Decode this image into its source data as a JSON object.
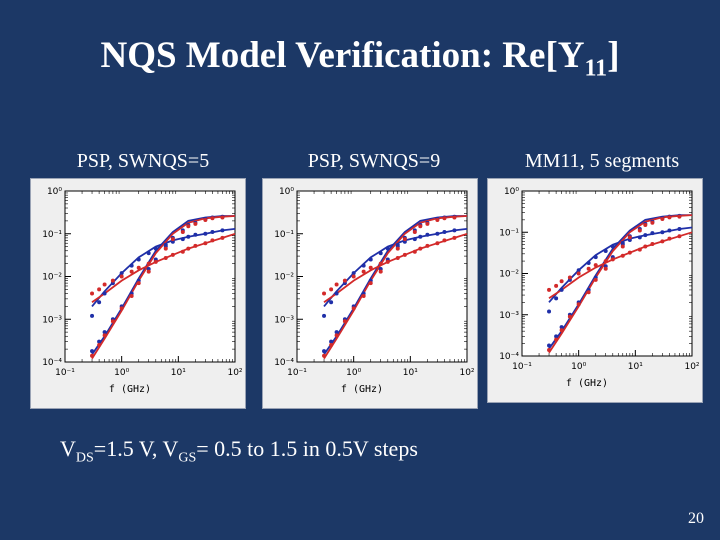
{
  "slide": {
    "title_main": "NQS Model Verification: Re[Y",
    "title_sub": "11",
    "title_end": "]",
    "caption": {
      "p1": "V",
      "s1": "DS",
      "p2": "=1.5 V, V",
      "s2": "GS",
      "p3": "= 0.5 to 1.5 in 0.5V steps"
    },
    "page_number": "20"
  },
  "colors": {
    "background": "#1c3866",
    "blue_series": "#1f2fa8",
    "red_series": "#d32a2a"
  },
  "chart_data": [
    {
      "type": "line",
      "panel_label": "PSP, SWNQS=5",
      "xlabel": "f (GHz)",
      "xscale": "log",
      "yscale": "log",
      "xlim": [
        0.1,
        100
      ],
      "ylim": [
        0.0001,
        1
      ],
      "x_ticks": [
        "10⁻¹",
        "10⁰",
        "10¹",
        "10²"
      ],
      "y_ticks": [
        "10⁰",
        "10⁻¹",
        "10⁻²",
        "10⁻³",
        "10⁻⁴"
      ],
      "series": [
        {
          "color": "blue",
          "style": "line",
          "x": [
            0.3,
            0.5,
            1,
            2,
            4,
            8,
            15,
            30,
            60,
            100
          ],
          "y": [
            0.00015,
            0.0004,
            0.0018,
            0.009,
            0.04,
            0.11,
            0.2,
            0.24,
            0.26,
            0.26
          ]
        },
        {
          "color": "blue",
          "style": "line",
          "x": [
            0.3,
            0.5,
            1,
            2,
            4,
            8,
            15,
            30,
            60,
            100
          ],
          "y": [
            0.002,
            0.0045,
            0.012,
            0.028,
            0.05,
            0.07,
            0.085,
            0.1,
            0.12,
            0.13
          ]
        },
        {
          "color": "red",
          "style": "line",
          "x": [
            0.3,
            0.5,
            1,
            2,
            4,
            8,
            15,
            30,
            60,
            100
          ],
          "y": [
            0.00012,
            0.00035,
            0.0016,
            0.008,
            0.035,
            0.1,
            0.18,
            0.23,
            0.25,
            0.26
          ]
        },
        {
          "color": "red",
          "style": "line",
          "x": [
            0.3,
            0.5,
            1,
            2,
            4,
            8,
            15,
            30,
            60,
            100
          ],
          "y": [
            0.0025,
            0.004,
            0.008,
            0.014,
            0.022,
            0.032,
            0.045,
            0.06,
            0.08,
            0.1
          ]
        },
        {
          "color": "blue",
          "style": "points",
          "x": [
            0.3,
            0.4,
            0.5,
            0.7,
            1,
            1.5,
            2,
            3,
            4,
            6,
            8,
            12,
            15,
            20,
            30,
            40,
            60
          ],
          "y": [
            0.0012,
            0.0025,
            0.004,
            0.007,
            0.012,
            0.018,
            0.025,
            0.035,
            0.045,
            0.055,
            0.065,
            0.075,
            0.085,
            0.095,
            0.1,
            0.11,
            0.12
          ]
        },
        {
          "color": "red",
          "style": "points",
          "x": [
            0.3,
            0.4,
            0.5,
            0.7,
            1,
            1.5,
            2,
            3,
            4,
            6,
            8,
            12,
            15,
            20,
            30,
            40,
            60
          ],
          "y": [
            0.004,
            0.005,
            0.0065,
            0.008,
            0.01,
            0.013,
            0.016,
            0.02,
            0.023,
            0.027,
            0.032,
            0.038,
            0.045,
            0.052,
            0.06,
            0.07,
            0.08
          ]
        },
        {
          "color": "blue",
          "style": "points",
          "x": [
            0.3,
            0.4,
            0.5,
            0.7,
            1,
            1.5,
            2,
            3,
            4,
            6,
            8,
            12,
            15,
            20,
            30,
            40,
            60
          ],
          "y": [
            0.00018,
            0.0003,
            0.0005,
            0.001,
            0.002,
            0.004,
            0.008,
            0.015,
            0.025,
            0.05,
            0.08,
            0.12,
            0.16,
            0.18,
            0.22,
            0.24,
            0.25
          ]
        },
        {
          "color": "red",
          "style": "points",
          "x": [
            0.3,
            0.4,
            0.5,
            0.7,
            1,
            1.5,
            2,
            3,
            4,
            6,
            8,
            12,
            15,
            20,
            30,
            40,
            60
          ],
          "y": [
            0.00014,
            0.00025,
            0.00042,
            0.0009,
            0.0018,
            0.0035,
            0.007,
            0.013,
            0.022,
            0.045,
            0.075,
            0.11,
            0.15,
            0.17,
            0.21,
            0.23,
            0.24
          ]
        }
      ]
    },
    {
      "type": "line",
      "panel_label": "PSP, SWNQS=9",
      "xlabel": "f (GHz)",
      "xscale": "log",
      "yscale": "log",
      "xlim": [
        0.1,
        100
      ],
      "ylim": [
        0.0001,
        1
      ],
      "x_ticks": [
        "10⁻¹",
        "10⁰",
        "10¹",
        "10²"
      ],
      "y_ticks": [
        "10⁰",
        "10⁻¹",
        "10⁻²",
        "10⁻³",
        "10⁻⁴"
      ],
      "series": [
        {
          "color": "blue",
          "style": "line",
          "x": [
            0.3,
            0.5,
            1,
            2,
            4,
            8,
            15,
            30,
            60,
            100
          ],
          "y": [
            0.00015,
            0.0004,
            0.0018,
            0.009,
            0.04,
            0.11,
            0.2,
            0.24,
            0.26,
            0.26
          ]
        },
        {
          "color": "blue",
          "style": "line",
          "x": [
            0.3,
            0.5,
            1,
            2,
            4,
            8,
            15,
            30,
            60,
            100
          ],
          "y": [
            0.002,
            0.0045,
            0.012,
            0.028,
            0.05,
            0.07,
            0.085,
            0.1,
            0.12,
            0.13
          ]
        },
        {
          "color": "red",
          "style": "line",
          "x": [
            0.3,
            0.5,
            1,
            2,
            4,
            8,
            15,
            30,
            60,
            100
          ],
          "y": [
            0.00012,
            0.00035,
            0.0016,
            0.008,
            0.035,
            0.1,
            0.18,
            0.23,
            0.25,
            0.26
          ]
        },
        {
          "color": "red",
          "style": "line",
          "x": [
            0.3,
            0.5,
            1,
            2,
            4,
            8,
            15,
            30,
            60,
            100
          ],
          "y": [
            0.0025,
            0.004,
            0.008,
            0.014,
            0.022,
            0.032,
            0.045,
            0.06,
            0.08,
            0.1
          ]
        },
        {
          "color": "blue",
          "style": "points",
          "x": [
            0.3,
            0.4,
            0.5,
            0.7,
            1,
            1.5,
            2,
            3,
            4,
            6,
            8,
            12,
            15,
            20,
            30,
            40,
            60
          ],
          "y": [
            0.0012,
            0.0025,
            0.004,
            0.007,
            0.012,
            0.018,
            0.025,
            0.035,
            0.045,
            0.055,
            0.065,
            0.075,
            0.085,
            0.095,
            0.1,
            0.11,
            0.12
          ]
        },
        {
          "color": "red",
          "style": "points",
          "x": [
            0.3,
            0.4,
            0.5,
            0.7,
            1,
            1.5,
            2,
            3,
            4,
            6,
            8,
            12,
            15,
            20,
            30,
            40,
            60
          ],
          "y": [
            0.004,
            0.005,
            0.0065,
            0.008,
            0.01,
            0.013,
            0.016,
            0.02,
            0.023,
            0.027,
            0.032,
            0.038,
            0.045,
            0.052,
            0.06,
            0.07,
            0.08
          ]
        },
        {
          "color": "blue",
          "style": "points",
          "x": [
            0.3,
            0.4,
            0.5,
            0.7,
            1,
            1.5,
            2,
            3,
            4,
            6,
            8,
            12,
            15,
            20,
            30,
            40,
            60
          ],
          "y": [
            0.00018,
            0.0003,
            0.0005,
            0.001,
            0.002,
            0.004,
            0.008,
            0.015,
            0.025,
            0.05,
            0.08,
            0.12,
            0.16,
            0.18,
            0.22,
            0.24,
            0.25
          ]
        },
        {
          "color": "red",
          "style": "points",
          "x": [
            0.3,
            0.4,
            0.5,
            0.7,
            1,
            1.5,
            2,
            3,
            4,
            6,
            8,
            12,
            15,
            20,
            30,
            40,
            60
          ],
          "y": [
            0.00014,
            0.00025,
            0.00042,
            0.0009,
            0.0018,
            0.0035,
            0.007,
            0.013,
            0.022,
            0.045,
            0.075,
            0.11,
            0.15,
            0.17,
            0.21,
            0.23,
            0.24
          ]
        }
      ]
    },
    {
      "type": "line",
      "panel_label": "MM11, 5 segments",
      "xlabel": "f (GHz)",
      "xscale": "log",
      "yscale": "log",
      "xlim": [
        0.1,
        100
      ],
      "ylim": [
        0.0001,
        1
      ],
      "x_ticks": [
        "10⁻¹",
        "10⁰",
        "10¹",
        "10²"
      ],
      "y_ticks": [
        "10⁰",
        "10⁻¹",
        "10⁻²",
        "10⁻³",
        "10⁻⁴"
      ],
      "series": [
        {
          "color": "blue",
          "style": "line",
          "x": [
            0.3,
            0.5,
            1,
            2,
            4,
            8,
            15,
            30,
            60,
            100
          ],
          "y": [
            0.00015,
            0.0004,
            0.0018,
            0.009,
            0.04,
            0.11,
            0.2,
            0.24,
            0.26,
            0.26
          ]
        },
        {
          "color": "blue",
          "style": "line",
          "x": [
            0.3,
            0.5,
            1,
            2,
            4,
            8,
            15,
            30,
            60,
            100
          ],
          "y": [
            0.002,
            0.0045,
            0.012,
            0.028,
            0.05,
            0.07,
            0.085,
            0.1,
            0.12,
            0.13
          ]
        },
        {
          "color": "red",
          "style": "line",
          "x": [
            0.3,
            0.5,
            1,
            2,
            4,
            8,
            15,
            30,
            60,
            100
          ],
          "y": [
            0.00012,
            0.00035,
            0.0016,
            0.008,
            0.035,
            0.1,
            0.18,
            0.23,
            0.25,
            0.26
          ]
        },
        {
          "color": "red",
          "style": "line",
          "x": [
            0.3,
            0.5,
            1,
            2,
            4,
            8,
            15,
            30,
            60,
            100
          ],
          "y": [
            0.0025,
            0.004,
            0.008,
            0.014,
            0.022,
            0.032,
            0.045,
            0.06,
            0.08,
            0.1
          ]
        },
        {
          "color": "blue",
          "style": "points",
          "x": [
            0.3,
            0.4,
            0.5,
            0.7,
            1,
            1.5,
            2,
            3,
            4,
            6,
            8,
            12,
            15,
            20,
            30,
            40,
            60
          ],
          "y": [
            0.0012,
            0.0025,
            0.004,
            0.007,
            0.012,
            0.018,
            0.025,
            0.035,
            0.045,
            0.055,
            0.065,
            0.075,
            0.085,
            0.095,
            0.1,
            0.11,
            0.12
          ]
        },
        {
          "color": "red",
          "style": "points",
          "x": [
            0.3,
            0.4,
            0.5,
            0.7,
            1,
            1.5,
            2,
            3,
            4,
            6,
            8,
            12,
            15,
            20,
            30,
            40,
            60
          ],
          "y": [
            0.004,
            0.005,
            0.0065,
            0.008,
            0.01,
            0.013,
            0.016,
            0.02,
            0.023,
            0.027,
            0.032,
            0.038,
            0.045,
            0.052,
            0.06,
            0.07,
            0.08
          ]
        },
        {
          "color": "blue",
          "style": "points",
          "x": [
            0.3,
            0.4,
            0.5,
            0.7,
            1,
            1.5,
            2,
            3,
            4,
            6,
            8,
            12,
            15,
            20,
            30,
            40,
            60
          ],
          "y": [
            0.00018,
            0.0003,
            0.0005,
            0.001,
            0.002,
            0.004,
            0.008,
            0.015,
            0.025,
            0.05,
            0.08,
            0.12,
            0.16,
            0.18,
            0.22,
            0.24,
            0.25
          ]
        },
        {
          "color": "red",
          "style": "points",
          "x": [
            0.3,
            0.4,
            0.5,
            0.7,
            1,
            1.5,
            2,
            3,
            4,
            6,
            8,
            12,
            15,
            20,
            30,
            40,
            60
          ],
          "y": [
            0.00014,
            0.00025,
            0.00042,
            0.0009,
            0.0018,
            0.0035,
            0.007,
            0.013,
            0.022,
            0.045,
            0.075,
            0.11,
            0.15,
            0.17,
            0.21,
            0.23,
            0.24
          ]
        }
      ]
    }
  ]
}
